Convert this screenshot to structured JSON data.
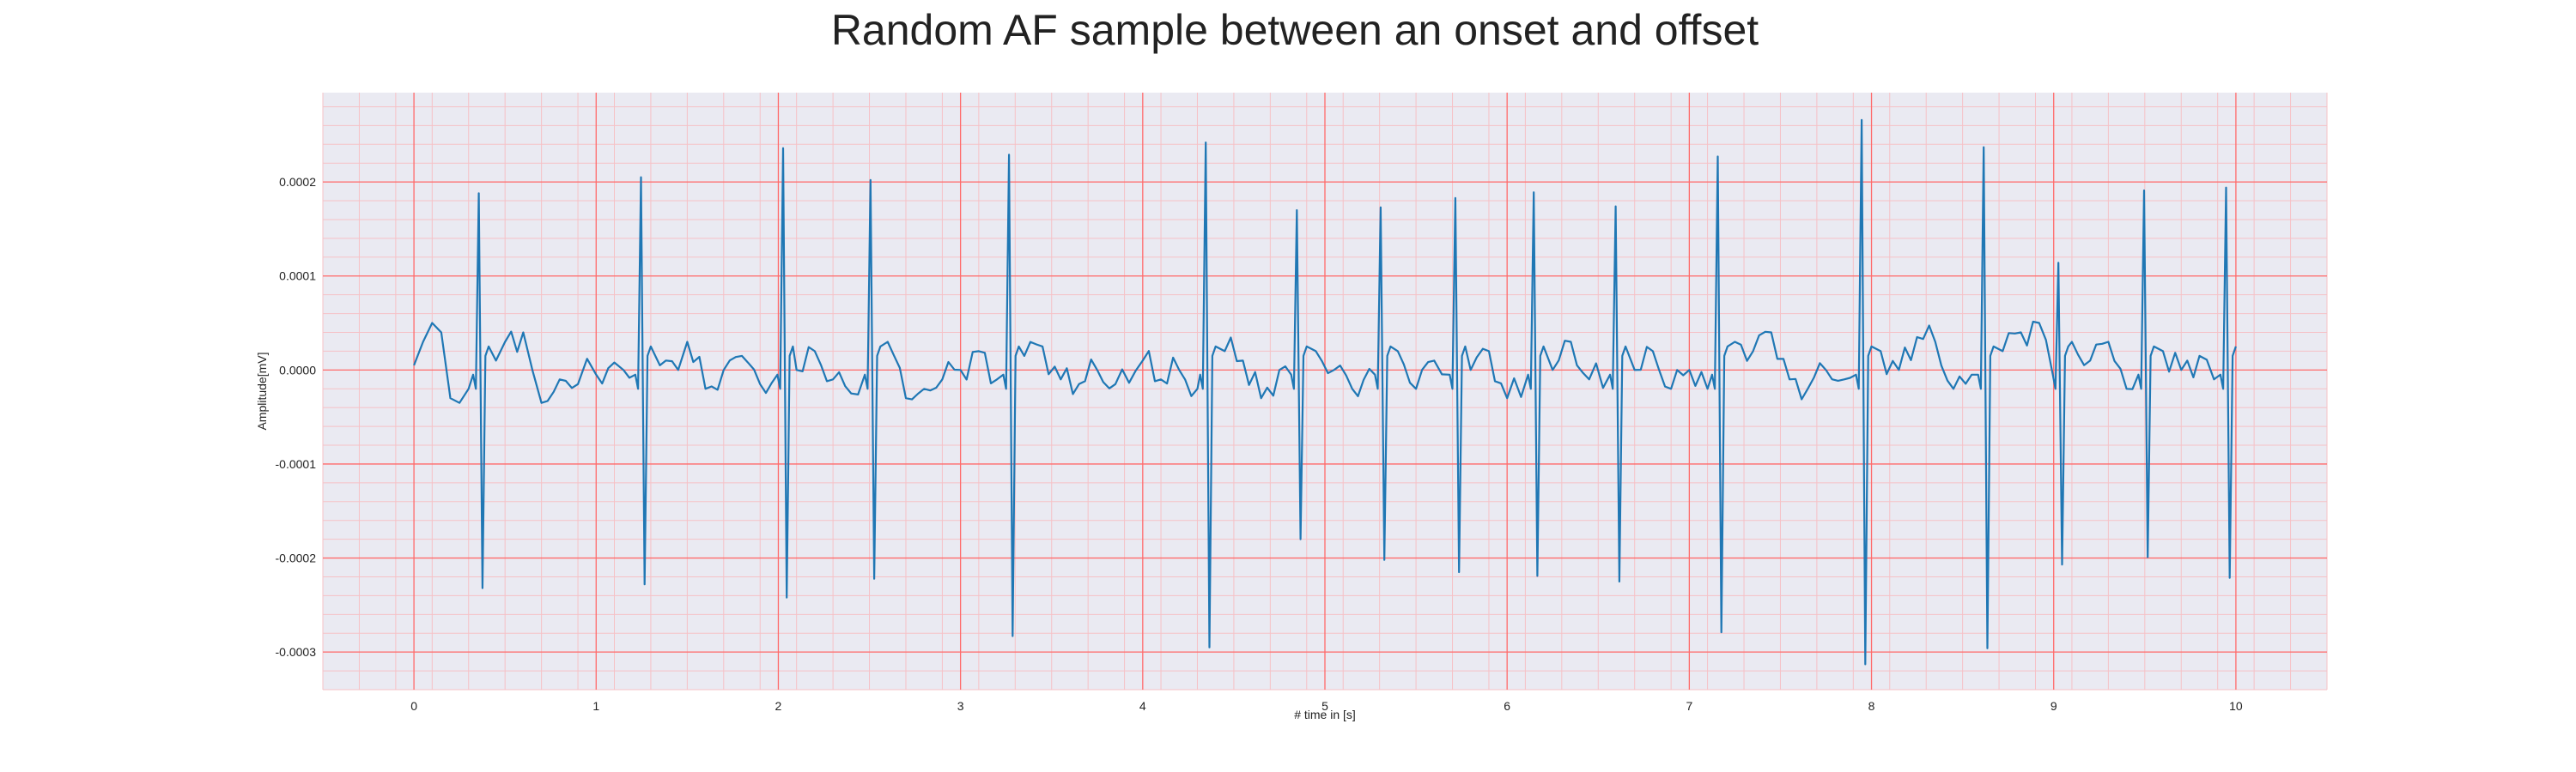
{
  "chart_data": {
    "type": "line",
    "title": "Random AF sample between an onset and offset",
    "xlabel": "# time in [s]",
    "ylabel": "Amplitude[mV]",
    "xlim": [
      -0.5,
      10.5
    ],
    "ylim": [
      -0.00034,
      0.000295
    ],
    "x_ticks": [
      0,
      1,
      2,
      3,
      4,
      5,
      6,
      7,
      8,
      9,
      10
    ],
    "x_tick_labels": [
      "0",
      "1",
      "2",
      "3",
      "4",
      "5",
      "6",
      "7",
      "8",
      "9",
      "10"
    ],
    "y_ticks": [
      -0.0003,
      -0.0002,
      -0.0001,
      0.0,
      0.0001,
      0.0002
    ],
    "y_tick_labels": [
      "-0.0003",
      "-0.0002",
      "-0.0001",
      "0.0000",
      "0.0001",
      "0.0002"
    ],
    "grid": true,
    "colors": {
      "line": "#1f77b4",
      "plot_background": "#eaeaf2",
      "major_grid": "#ff6b6b",
      "minor_grid": "#f6c1c6"
    },
    "beats": [
      {
        "t": 0.36,
        "peak": 0.000188,
        "trough": -0.000232
      },
      {
        "t": 1.25,
        "peak": 0.000205,
        "trough": -0.000228
      },
      {
        "t": 2.03,
        "peak": 0.000236,
        "trough": -0.000242
      },
      {
        "t": 2.51,
        "peak": 0.000202,
        "trough": -0.000222
      },
      {
        "t": 3.27,
        "peak": 0.000229,
        "trough": -0.000283
      },
      {
        "t": 4.35,
        "peak": 0.000242,
        "trough": -0.000295
      },
      {
        "t": 4.85,
        "peak": 0.00017,
        "trough": -0.00018
      },
      {
        "t": 5.31,
        "peak": 0.000173,
        "trough": -0.000202
      },
      {
        "t": 5.72,
        "peak": 0.000183,
        "trough": -0.000215
      },
      {
        "t": 6.15,
        "peak": 0.000189,
        "trough": -0.000219
      },
      {
        "t": 6.6,
        "peak": 0.000174,
        "trough": -0.000225
      },
      {
        "t": 7.16,
        "peak": 0.000227,
        "trough": -0.000279
      },
      {
        "t": 7.95,
        "peak": 0.000266,
        "trough": -0.000313
      },
      {
        "t": 8.62,
        "peak": 0.000237,
        "trough": -0.000296
      },
      {
        "t": 9.03,
        "peak": 0.000114,
        "trough": -0.000207
      },
      {
        "t": 9.5,
        "peak": 0.000191,
        "trough": -0.000199
      },
      {
        "t": 9.95,
        "peak": 0.000194,
        "trough": -0.000221
      }
    ],
    "baseline": [
      [
        0.0,
        5e-06
      ],
      [
        0.05,
        3e-05
      ],
      [
        0.1,
        5e-05
      ],
      [
        0.15,
        4e-05
      ],
      [
        0.2,
        -3e-05
      ],
      [
        0.25,
        -3.5e-05
      ],
      [
        0.3,
        -2e-05
      ],
      [
        0.45,
        1e-05
      ],
      [
        0.5,
        3e-05
      ],
      [
        0.6,
        4e-05
      ],
      [
        0.65,
        0.0
      ],
      [
        0.7,
        -3.5e-05
      ],
      [
        0.8,
        -1e-05
      ],
      [
        0.9,
        -1.5e-05
      ],
      [
        0.95,
        1.2e-05
      ],
      [
        1.0,
        -5e-06
      ],
      [
        1.1,
        8e-06
      ],
      [
        1.15,
        0.0
      ],
      [
        1.35,
        5e-06
      ],
      [
        1.45,
        0.0
      ],
      [
        1.5,
        3e-05
      ],
      [
        1.6,
        -2e-05
      ],
      [
        1.7,
        0.0
      ],
      [
        1.8,
        1.5e-05
      ],
      [
        1.9,
        -1.5e-05
      ],
      [
        2.1,
        0.0
      ],
      [
        2.2,
        2e-05
      ],
      [
        2.3,
        -1e-05
      ],
      [
        2.4,
        -2.5e-05
      ],
      [
        2.6,
        3e-05
      ],
      [
        2.7,
        -3e-05
      ],
      [
        2.8,
        -2e-05
      ],
      [
        2.9,
        -1e-05
      ],
      [
        3.0,
        0.0
      ],
      [
        3.1,
        2e-05
      ],
      [
        3.2,
        -1e-05
      ],
      [
        3.35,
        1.5e-05
      ],
      [
        3.45,
        2.5e-05
      ],
      [
        3.55,
        -1e-05
      ],
      [
        3.65,
        -1.5e-05
      ],
      [
        3.75,
        0.0
      ],
      [
        3.85,
        -1.5e-05
      ],
      [
        4.0,
        1e-05
      ],
      [
        4.1,
        -1e-05
      ],
      [
        4.2,
        0.0
      ],
      [
        4.3,
        -2e-05
      ],
      [
        4.45,
        2e-05
      ],
      [
        4.55,
        1e-05
      ],
      [
        4.65,
        -3e-05
      ],
      [
        4.75,
        0.0
      ],
      [
        4.95,
        2e-05
      ],
      [
        5.05,
        0.0
      ],
      [
        5.15,
        -2e-05
      ],
      [
        5.25,
        0.0
      ],
      [
        5.4,
        2e-05
      ],
      [
        5.5,
        -2e-05
      ],
      [
        5.6,
        1e-05
      ],
      [
        5.8,
        0.0
      ],
      [
        5.9,
        2e-05
      ],
      [
        6.0,
        -3e-05
      ],
      [
        6.25,
        0.0
      ],
      [
        6.35,
        3e-05
      ],
      [
        6.45,
        -1e-05
      ],
      [
        6.55,
        2e-05
      ],
      [
        6.7,
        0.0
      ],
      [
        6.8,
        2e-05
      ],
      [
        6.9,
        -2e-05
      ],
      [
        7.0,
        0.0
      ],
      [
        7.1,
        -2e-05
      ],
      [
        7.25,
        3e-05
      ],
      [
        7.35,
        2e-05
      ],
      [
        7.45,
        4e-05
      ],
      [
        7.55,
        -1e-05
      ],
      [
        7.65,
        -2e-05
      ],
      [
        7.75,
        0.0
      ],
      [
        7.85,
        -1e-05
      ],
      [
        8.05,
        2e-05
      ],
      [
        8.15,
        0.0
      ],
      [
        8.25,
        3.5e-05
      ],
      [
        8.35,
        3e-05
      ],
      [
        8.45,
        -2e-05
      ],
      [
        8.55,
        -5e-06
      ],
      [
        8.72,
        2e-05
      ],
      [
        8.82,
        4e-05
      ],
      [
        8.92,
        5e-05
      ],
      [
        8.98,
        -3e-05
      ],
      [
        9.1,
        3e-05
      ],
      [
        9.2,
        1e-05
      ],
      [
        9.3,
        3e-05
      ],
      [
        9.4,
        -2e-05
      ],
      [
        9.45,
        0.0
      ],
      [
        9.6,
        2e-05
      ],
      [
        9.7,
        0.0
      ],
      [
        9.8,
        1.5e-05
      ],
      [
        9.88,
        -1e-05
      ],
      [
        10.0,
        0.0
      ]
    ]
  }
}
